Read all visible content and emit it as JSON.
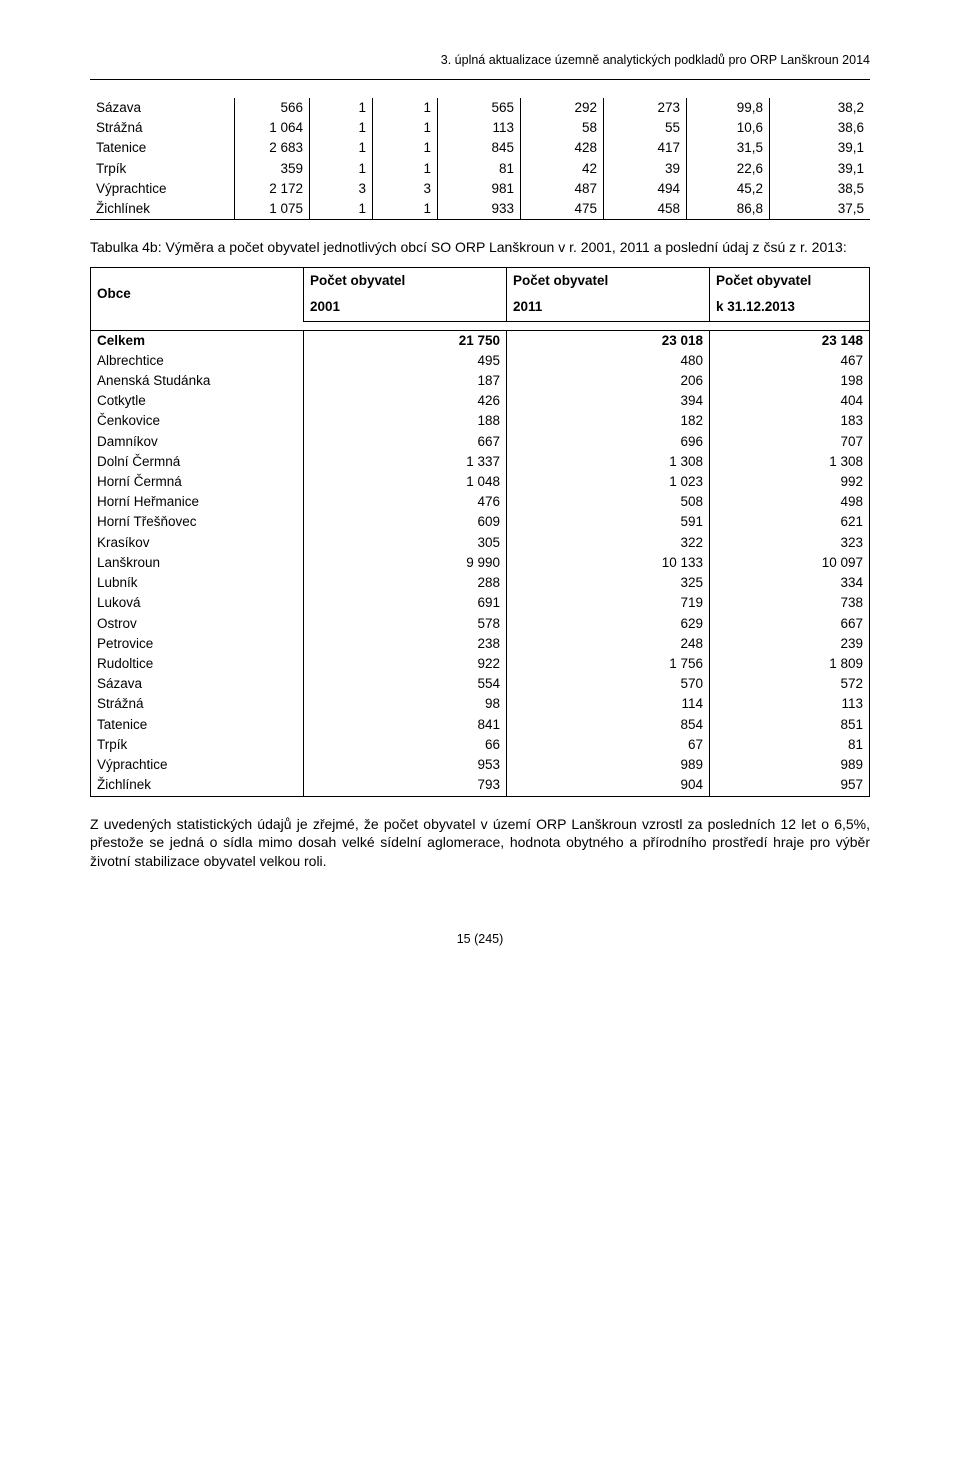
{
  "header": "3. úplná aktualizace územně analytických podkladů pro ORP Lanškroun 2014",
  "table1_rows": [
    [
      "Sázava",
      "566",
      "1",
      "1",
      "565",
      "292",
      "273",
      "99,8",
      "38,2"
    ],
    [
      "Strážná",
      "1 064",
      "1",
      "1",
      "113",
      "58",
      "55",
      "10,6",
      "38,6"
    ],
    [
      "Tatenice",
      "2 683",
      "1",
      "1",
      "845",
      "428",
      "417",
      "31,5",
      "39,1"
    ],
    [
      "Trpík",
      "359",
      "1",
      "1",
      "81",
      "42",
      "39",
      "22,6",
      "39,1"
    ],
    [
      "Výprachtice",
      "2 172",
      "3",
      "3",
      "981",
      "487",
      "494",
      "45,2",
      "38,5"
    ],
    [
      "Žichlínek",
      "1 075",
      "1",
      "1",
      "933",
      "475",
      "458",
      "86,8",
      "37,5"
    ]
  ],
  "caption": "Tabulka 4b: Výměra a počet obyvatel jednotlivých obcí SO ORP Lanškroun v r. 2001, 2011 a poslední údaj z čsú z r. 2013:",
  "table2_head": {
    "c1": "Obce",
    "c2_l1": "Počet obyvatel",
    "c2_l2": "2001",
    "c3_l1": "Počet obyvatel",
    "c3_l2": "2011",
    "c4_l1": "Počet obyvatel",
    "c4_l2": "k 31.12.2013"
  },
  "table2_total": [
    "Celkem",
    "21 750",
    "23 018",
    "23 148"
  ],
  "table2_rows": [
    [
      "Albrechtice",
      "495",
      "480",
      "467"
    ],
    [
      "Anenská Studánka",
      "187",
      "206",
      "198"
    ],
    [
      "Cotkytle",
      "426",
      "394",
      "404"
    ],
    [
      "Čenkovice",
      "188",
      "182",
      "183"
    ],
    [
      "Damníkov",
      "667",
      "696",
      "707"
    ],
    [
      "Dolní Čermná",
      "1 337",
      "1 308",
      "1 308"
    ],
    [
      "Horní Čermná",
      "1 048",
      "1 023",
      "992"
    ],
    [
      "Horní Heřmanice",
      "476",
      "508",
      "498"
    ],
    [
      "Horní Třešňovec",
      "609",
      "591",
      "621"
    ],
    [
      "Krasíkov",
      "305",
      "322",
      "323"
    ],
    [
      "Lanškroun",
      "9 990",
      "10 133",
      "10 097"
    ],
    [
      "Lubník",
      "288",
      "325",
      "334"
    ],
    [
      "Luková",
      "691",
      "719",
      "738"
    ],
    [
      "Ostrov",
      "578",
      "629",
      "667"
    ],
    [
      "Petrovice",
      "238",
      "248",
      "239"
    ],
    [
      "Rudoltice",
      "922",
      "1 756",
      "1 809"
    ],
    [
      "Sázava",
      "554",
      "570",
      "572"
    ],
    [
      "Strážná",
      "98",
      "114",
      "113"
    ],
    [
      "Tatenice",
      "841",
      "854",
      "851"
    ],
    [
      "Trpík",
      "66",
      "67",
      "81"
    ],
    [
      "Výprachtice",
      "953",
      "989",
      "989"
    ],
    [
      "Žichlínek",
      "793",
      "904",
      "957"
    ]
  ],
  "paragraph": "Z uvedených statistických údajů je zřejmé, že počet obyvatel v území ORP Lanškroun vzrostl za posledních 12 let o 6,5%, přestože se jedná o sídla mimo dosah velké sídelní aglomerace, hodnota obytného a přírodního prostředí hraje pro výběr životní stabilizace obyvatel velkou roli.",
  "footer": "15 (245)"
}
